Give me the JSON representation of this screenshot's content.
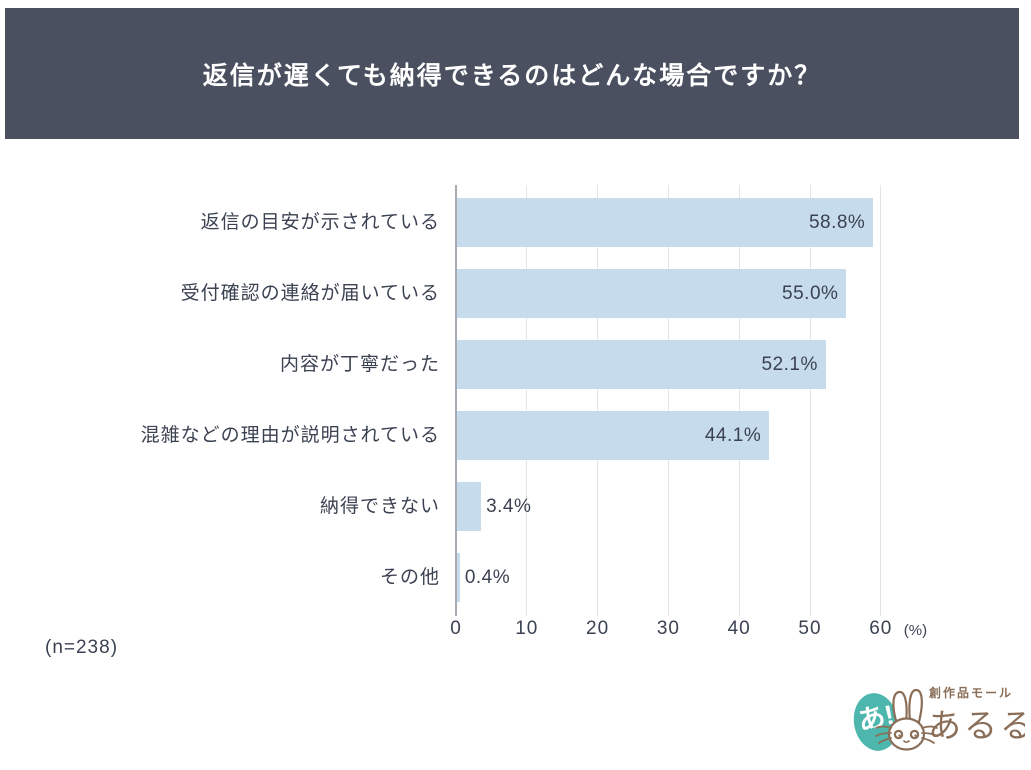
{
  "header": {
    "title": "返信が遅くても納得できるのはどんな場合ですか？"
  },
  "chart_data": {
    "type": "bar",
    "orientation": "horizontal",
    "title": "返信が遅くても納得できるのはどんな場合ですか？",
    "categories": [
      "返信の目安が示されている",
      "受付確認の連絡が届いている",
      "内容が丁寧だった",
      "混雑などの理由が説明されている",
      "納得できない",
      "その他"
    ],
    "values": [
      58.8,
      55.0,
      52.1,
      44.1,
      3.4,
      0.4
    ],
    "value_labels": [
      "58.8%",
      "55.0%",
      "52.1%",
      "44.1%",
      "3.4%",
      "0.4%"
    ],
    "x_ticks": [
      0,
      10,
      20,
      30,
      40,
      50,
      60
    ],
    "x_axis_unit": "(%)",
    "xlim": [
      0,
      64
    ],
    "grid": true,
    "legend": false,
    "bar_color": "#c6dbeb",
    "sample_size": "(n=238)"
  },
  "footer": {
    "note": "(n=238)"
  },
  "logo": {
    "badge_text": "あ!",
    "tagline": "創作品モール",
    "brand": "あるる",
    "teal": "#4db7ae",
    "brown": "#8a6e58"
  },
  "colors": {
    "header_bg": "#4a505f",
    "title_text": "#ffffff",
    "body_text": "#3b4252",
    "gridline": "#e3e4e6",
    "axis_line": "#a6aab2",
    "bar_fill": "#c6dbeb"
  }
}
